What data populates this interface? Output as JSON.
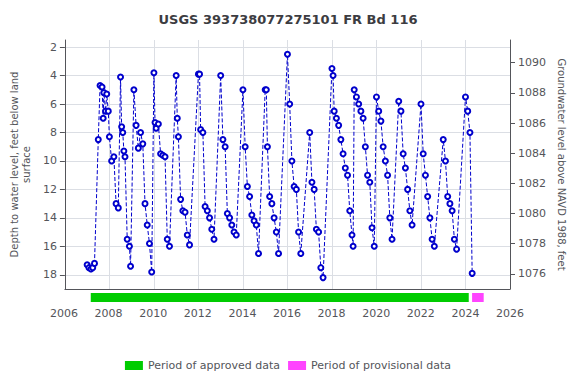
{
  "chart_data": {
    "type": "line",
    "title": "USGS 393738077275101 FR Bd 116",
    "ylabel": "Depth to water level, feet below land\nsurface",
    "y2label": "Groundwater level above NAVD 1988, feet",
    "xlim": [
      2006,
      2026
    ],
    "xticks": [
      2006,
      2008,
      2010,
      2012,
      2014,
      2016,
      2018,
      2020,
      2022,
      2024,
      2026
    ],
    "ylim": [
      19,
      1.5
    ],
    "yticks": [
      2,
      4,
      6,
      8,
      10,
      12,
      14,
      16,
      18
    ],
    "y2lim": [
      1075,
      1091.5
    ],
    "y2ticks": [
      1076,
      1078,
      1080,
      1082,
      1084,
      1086,
      1088,
      1090
    ],
    "grid": true,
    "color": "#0000cc",
    "line_style": "dashed",
    "marker": "open_circle",
    "legend": "bottom",
    "periods": [
      {
        "name": "Period of approved data",
        "start": 2007.2,
        "end": 2024.15,
        "color": "#00cc00"
      },
      {
        "name": "Period of provisional data",
        "start": 2024.3,
        "end": 2024.82,
        "color": "#ff44ff"
      }
    ],
    "x": [
      2007.0,
      2007.08,
      2007.17,
      2007.25,
      2007.33,
      2007.5,
      2007.58,
      2007.67,
      2007.72,
      2007.75,
      2007.83,
      2007.88,
      2007.95,
      2008.0,
      2008.1,
      2008.2,
      2008.3,
      2008.4,
      2008.5,
      2008.55,
      2008.6,
      2008.65,
      2008.7,
      2008.8,
      2008.9,
      2008.95,
      2009.1,
      2009.2,
      2009.3,
      2009.4,
      2009.5,
      2009.6,
      2009.7,
      2009.8,
      2009.9,
      2010.0,
      2010.05,
      2010.1,
      2010.2,
      2010.3,
      2010.4,
      2010.5,
      2010.6,
      2010.7,
      2011.0,
      2011.05,
      2011.1,
      2011.2,
      2011.3,
      2011.4,
      2011.5,
      2011.6,
      2012.0,
      2012.05,
      2012.1,
      2012.2,
      2012.3,
      2012.4,
      2012.5,
      2012.6,
      2012.7,
      2013.0,
      2013.1,
      2013.2,
      2013.3,
      2013.4,
      2013.5,
      2013.6,
      2013.7,
      2014.0,
      2014.1,
      2014.2,
      2014.3,
      2014.4,
      2014.5,
      2014.6,
      2014.7,
      2015.0,
      2015.05,
      2015.1,
      2015.2,
      2015.3,
      2015.4,
      2015.5,
      2015.6,
      2016.0,
      2016.1,
      2016.2,
      2016.3,
      2016.4,
      2016.5,
      2016.6,
      2017.0,
      2017.1,
      2017.2,
      2017.3,
      2017.4,
      2017.5,
      2017.6,
      2018.0,
      2018.05,
      2018.1,
      2018.2,
      2018.3,
      2018.4,
      2018.5,
      2018.6,
      2018.7,
      2018.8,
      2018.9,
      2018.95,
      2019.0,
      2019.1,
      2019.2,
      2019.3,
      2019.4,
      2019.5,
      2019.6,
      2019.7,
      2019.8,
      2019.9,
      2020.0,
      2020.1,
      2020.2,
      2020.3,
      2020.4,
      2020.5,
      2020.6,
      2020.7,
      2021.0,
      2021.1,
      2021.2,
      2021.3,
      2021.4,
      2021.5,
      2021.6,
      2022.0,
      2022.1,
      2022.2,
      2022.3,
      2022.4,
      2022.5,
      2022.6,
      2023.0,
      2023.1,
      2023.2,
      2023.3,
      2023.4,
      2023.5,
      2023.6,
      2024.0,
      2024.1,
      2024.2,
      2024.3
    ],
    "values": [
      17.3,
      17.5,
      17.6,
      17.5,
      17.2,
      8.5,
      4.7,
      4.8,
      7.0,
      5.2,
      6.5,
      5.3,
      6.5,
      8.3,
      10.0,
      9.7,
      13.0,
      13.3,
      4.1,
      7.6,
      8.0,
      9.3,
      9.7,
      15.5,
      16.0,
      17.4,
      5.0,
      7.5,
      9.1,
      8.0,
      8.8,
      13.0,
      14.5,
      15.8,
      17.8,
      3.8,
      7.3,
      7.7,
      7.4,
      9.5,
      9.6,
      9.7,
      15.5,
      16.0,
      4.0,
      7.0,
      8.3,
      12.7,
      13.5,
      13.6,
      15.2,
      15.9,
      3.9,
      3.9,
      7.8,
      8.0,
      13.2,
      13.5,
      14.0,
      14.8,
      15.5,
      4.0,
      8.5,
      9.0,
      13.7,
      14.0,
      14.5,
      15.0,
      15.2,
      5.0,
      9.0,
      11.8,
      12.5,
      13.8,
      14.2,
      14.5,
      16.5,
      5.0,
      5.0,
      9.0,
      12.5,
      13.0,
      14.0,
      15.0,
      16.5,
      2.5,
      6.0,
      10.0,
      11.8,
      12.0,
      15.0,
      16.5,
      8.0,
      11.5,
      12.0,
      14.8,
      15.0,
      17.5,
      18.2,
      3.5,
      4.0,
      6.5,
      7.0,
      7.5,
      8.5,
      9.5,
      10.5,
      11.0,
      13.5,
      15.2,
      16.0,
      5.0,
      5.5,
      6.0,
      6.5,
      7.0,
      9.0,
      11.0,
      11.5,
      14.7,
      16.0,
      5.5,
      6.5,
      7.2,
      9.0,
      10.0,
      11.0,
      14.0,
      15.5,
      5.8,
      6.5,
      9.5,
      10.5,
      12.0,
      13.5,
      14.5,
      6.0,
      9.5,
      11.0,
      12.5,
      14.0,
      15.5,
      16.0,
      8.5,
      10.0,
      12.5,
      13.0,
      13.5,
      15.5,
      16.2,
      5.5,
      6.5,
      8.0,
      17.9
    ]
  }
}
